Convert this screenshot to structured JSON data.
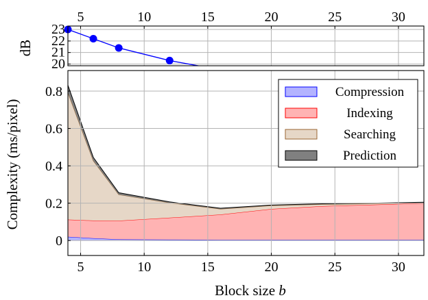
{
  "chart_data": [
    {
      "type": "line",
      "ylabel": "dB",
      "xlim": [
        4,
        32
      ],
      "ylim": [
        19.85,
        23.3
      ],
      "x_ticks": [
        "5",
        "10",
        "15",
        "20",
        "25",
        "30"
      ],
      "y_ticks": [
        "20",
        "21",
        "22",
        "23"
      ],
      "x_axis_position": "top",
      "grid": true,
      "color": "#0000ff",
      "series": [
        {
          "x": [
            4,
            6,
            8,
            12,
            16
          ],
          "y": [
            23.0,
            22.2,
            21.4,
            20.3,
            19.5
          ]
        }
      ]
    },
    {
      "type": "area",
      "stacked": true,
      "xlabel": "Block size",
      "xlabel_var": "b",
      "ylabel": "Complexity (ms/pixel)",
      "xlim": [
        4,
        32
      ],
      "ylim": [
        -0.08,
        0.91
      ],
      "x_ticks": [
        "5",
        "10",
        "15",
        "20",
        "25",
        "30"
      ],
      "y_ticks": [
        "0",
        "0.2",
        "0.4",
        "0.6",
        "0.8"
      ],
      "grid": true,
      "legend_position": "top-right",
      "x": [
        4,
        6,
        8,
        12,
        16,
        20,
        24,
        28,
        32
      ],
      "series": [
        {
          "name": "Compression",
          "values": [
            0.02,
            0.012,
            0.006,
            0.005,
            0.004,
            0.004,
            0.004,
            0.004,
            0.004
          ],
          "fill": "#b3b3ff",
          "stroke": "#0000ff"
        },
        {
          "name": "Indexing",
          "values": [
            0.092,
            0.095,
            0.1,
            0.117,
            0.135,
            0.165,
            0.18,
            0.188,
            0.196
          ],
          "fill": "#ffb3b3",
          "stroke": "#ff0000"
        },
        {
          "name": "Searching",
          "values": [
            0.68,
            0.32,
            0.14,
            0.08,
            0.03,
            0.018,
            0.01,
            0.006,
            0.003
          ],
          "fill": "#e6d7c7",
          "stroke": "#996633"
        },
        {
          "name": "Prediction",
          "values": [
            0.04,
            0.018,
            0.01,
            0.005,
            0.004,
            0.003,
            0.003,
            0.002,
            0.002
          ],
          "fill": "#808080",
          "stroke": "#000000"
        }
      ]
    }
  ]
}
